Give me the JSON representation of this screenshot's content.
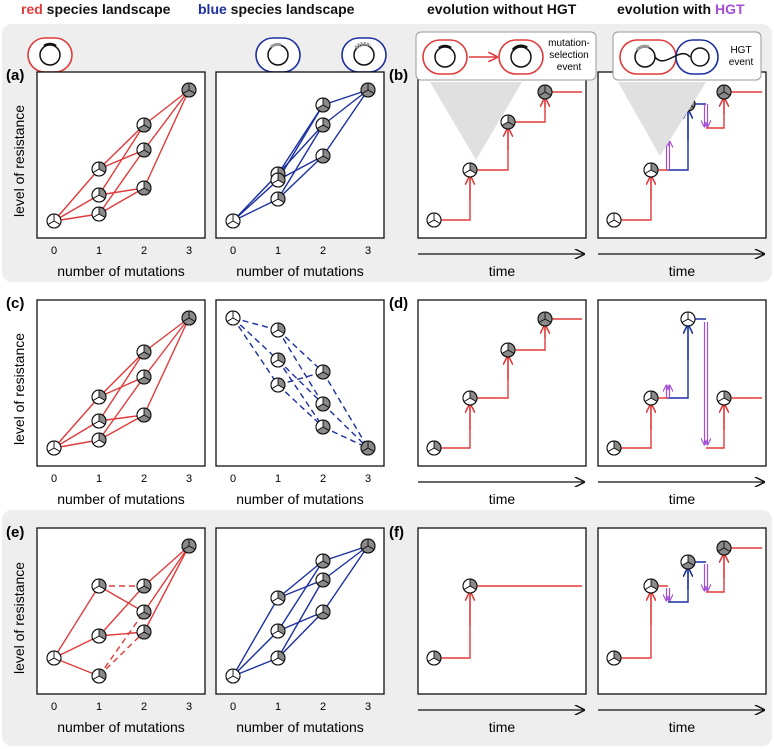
{
  "colors": {
    "red": "#e03b3b",
    "blue": "#1c2fa0",
    "purple": "#a24fd6",
    "gray_dark": "#8a8a8a",
    "gray_light": "#e0e0e0",
    "band": "#eeeeee"
  },
  "headers": {
    "red_word": "red",
    "red_rest": " species landscape",
    "blue_word": "blue",
    "blue_rest": " species landscape",
    "without": "evolution without HGT",
    "with_prefix": "evolution with ",
    "with_hgt": "HGT"
  },
  "labels": {
    "a": "(a)",
    "b": "(b)",
    "c": "(c)",
    "d": "(d)",
    "e": "(e)",
    "f": "(f)"
  },
  "axes": {
    "ylabel": "level of resistance",
    "xlabel": "number of mutations",
    "time": "time",
    "ticks": [
      "0",
      "1",
      "2",
      "3"
    ]
  },
  "legend": {
    "mutation_line1": "mutation-",
    "mutation_line2": "selection",
    "mutation_line3": "event",
    "hgt_line1": "HGT",
    "hgt_line2": "event"
  },
  "icons": [
    "red-plasmid-cell-icon",
    "blue-plasmid-cell-icon",
    "blue-plasmid-insert-cell-icon",
    "genotype-pie-icon",
    "hgt-double-arrow-icon"
  ]
}
